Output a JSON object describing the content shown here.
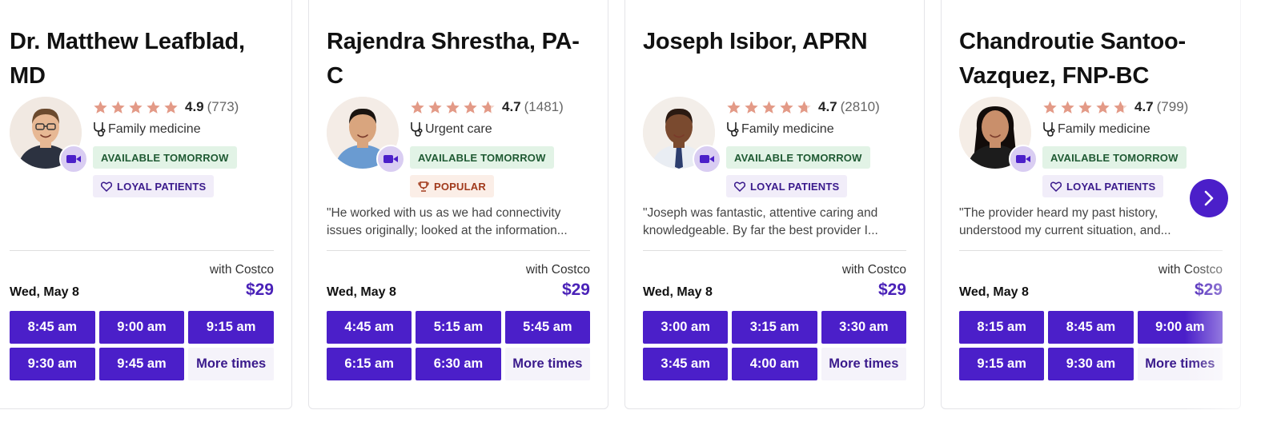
{
  "colors": {
    "accent": "#4b1fc9",
    "star": "#e39a87",
    "available_bg": "#e2f3e6",
    "popular_bg": "#fbeee7",
    "loyal_bg": "#f1edf9"
  },
  "providers": [
    {
      "name": "Dr. Matthew Leafblad, MD",
      "rating": "4.9",
      "review_count": "(773)",
      "stars": 5,
      "specialty": "Family medicine",
      "badges": [
        "AVAILABLE TOMORROW",
        "LOYAL PATIENTS"
      ],
      "quote": "",
      "with_label": "with Costco",
      "date": "Wed, May 8",
      "price": "$29",
      "slots": [
        "8:45 am",
        "9:00 am",
        "9:15 am",
        "9:30 am",
        "9:45 am"
      ],
      "more_label": "More times"
    },
    {
      "name": "Rajendra Shrestha, PA-C",
      "rating": "4.7",
      "review_count": "(1481)",
      "stars": 4.7,
      "specialty": "Urgent care",
      "badges": [
        "AVAILABLE TOMORROW",
        "POPULAR"
      ],
      "quote": "\"He worked with us as we had connectivity issues originally; looked at the information...",
      "with_label": "with Costco",
      "date": "Wed, May 8",
      "price": "$29",
      "slots": [
        "4:45 am",
        "5:15 am",
        "5:45 am",
        "6:15 am",
        "6:30 am"
      ],
      "more_label": "More times"
    },
    {
      "name": "Joseph Isibor, APRN",
      "rating": "4.7",
      "review_count": "(2810)",
      "stars": 4.7,
      "specialty": "Family medicine",
      "badges": [
        "AVAILABLE TOMORROW",
        "LOYAL PATIENTS"
      ],
      "quote": "\"Joseph was fantastic, attentive caring and knowledgeable. By far the best provider I...",
      "with_label": "with Costco",
      "date": "Wed, May 8",
      "price": "$29",
      "slots": [
        "3:00 am",
        "3:15 am",
        "3:30 am",
        "3:45 am",
        "4:00 am"
      ],
      "more_label": "More times"
    },
    {
      "name": "Chandroutie Santoo-Vazquez, FNP-BC",
      "rating": "4.7",
      "review_count": "(799)",
      "stars": 4.7,
      "specialty": "Family medicine",
      "badges": [
        "AVAILABLE TOMORROW",
        "LOYAL PATIENTS"
      ],
      "quote": "\"The provider heard my past history, understood my current situation, and...",
      "with_label": "with Costco",
      "date": "Wed, May 8",
      "price": "$29",
      "slots": [
        "8:15 am",
        "8:45 am",
        "9:00 am",
        "9:15 am",
        "9:30 am"
      ],
      "more_label": "More times"
    }
  ],
  "icons": {
    "star": "star-icon",
    "specialty": "stethoscope-icon",
    "video": "video-camera-icon",
    "popular": "trophy-icon",
    "loyal": "heart-icon",
    "next": "chevron-right-icon"
  }
}
